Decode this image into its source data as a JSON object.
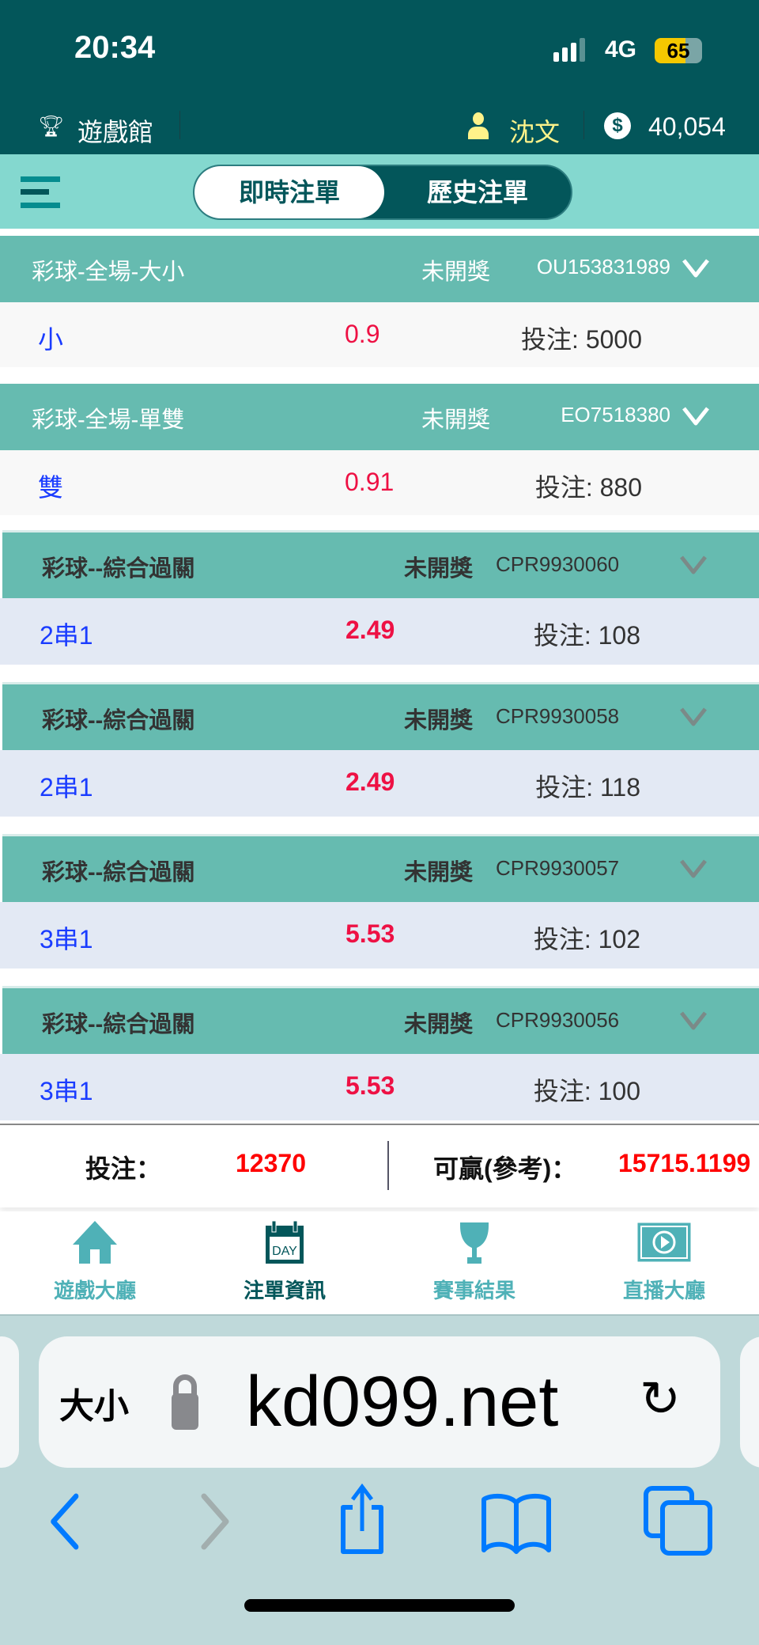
{
  "status_bar": {
    "time": "20:34",
    "network": "4G",
    "battery": "65"
  },
  "header": {
    "lobby_label": "遊戲館",
    "username": "沈文",
    "balance": "40,054"
  },
  "tabs": [
    {
      "label": "即時注單",
      "active": true
    },
    {
      "label": "歷史注單",
      "active": false
    }
  ],
  "stake_prefix": "投注:",
  "bets": [
    {
      "title": "彩球-全場-大小",
      "status": "未開獎",
      "code": "OU153831989",
      "selection": "小",
      "odds": "0.9",
      "stake": "5000"
    },
    {
      "title": "彩球-全場-單雙",
      "status": "未開獎",
      "code": "EO7518380",
      "selection": "雙",
      "odds": "0.91",
      "stake": "880"
    }
  ],
  "parlays": [
    {
      "title": "彩球--綜合過關",
      "status": "未開獎",
      "code": "CPR9930060",
      "selection": "2串1",
      "odds": "2.49",
      "stake": "108"
    },
    {
      "title": "彩球--綜合過關",
      "status": "未開獎",
      "code": "CPR9930058",
      "selection": "2串1",
      "odds": "2.49",
      "stake": "118"
    },
    {
      "title": "彩球--綜合過關",
      "status": "未開獎",
      "code": "CPR9930057",
      "selection": "3串1",
      "odds": "5.53",
      "stake": "102"
    },
    {
      "title": "彩球--綜合過關",
      "status": "未開獎",
      "code": "CPR9930056",
      "selection": "3串1",
      "odds": "5.53",
      "stake": "100"
    }
  ],
  "summary": {
    "stake_label": "投注：",
    "stake_total": "12370",
    "win_label": "可贏(參考)：",
    "win_total": "15715.1199"
  },
  "bottom_nav": [
    {
      "label": "遊戲大廳",
      "icon": "home-icon"
    },
    {
      "label": "注單資訊",
      "icon": "calendar-day-icon",
      "active": true,
      "icon_text": "DAY"
    },
    {
      "label": "賽事結果",
      "icon": "trophy-icon"
    },
    {
      "label": "直播大廳",
      "icon": "live-video-icon"
    }
  ],
  "browser": {
    "text_size_label": "大小",
    "domain": "kd099.net"
  },
  "colors": {
    "dark_teal": "#03565a",
    "tab_bar": "#84d8cf",
    "bet_header": "#66bbb0",
    "odds": "#ee1144",
    "selection": "#1a3cff",
    "summary_red": "#ff0000",
    "ios_blue": "#007aff"
  }
}
